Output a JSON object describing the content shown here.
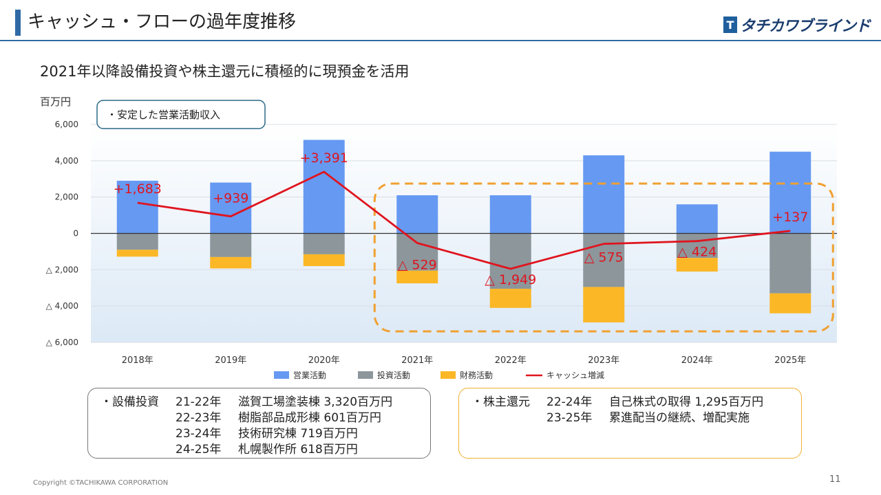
{
  "header": {
    "title": "キャッシュ・フローの過年度推移",
    "logo_text": "タチカワブラインド",
    "logo_mark": "T"
  },
  "subtitle": "2021年以降設備投資や株主還元に積極的に現預金を活用",
  "chart_data": {
    "type": "bar",
    "stacked": true,
    "unit": "百万円",
    "categories": [
      "2018年",
      "2019年",
      "2020年",
      "2021年",
      "2022年",
      "2023年",
      "2024年",
      "2025年"
    ],
    "series": [
      {
        "name": "営業活動",
        "color": "#6699f2",
        "values": [
          2900,
          2800,
          5150,
          2100,
          2100,
          4300,
          1600,
          4500
        ]
      },
      {
        "name": "投資活動",
        "color": "#8c969b",
        "values": [
          -900,
          -1300,
          -1150,
          -2050,
          -3050,
          -2950,
          -1350,
          -3300
        ]
      },
      {
        "name": "財務活動",
        "color": "#fbb726",
        "values": [
          -380,
          -630,
          -650,
          -700,
          -1050,
          -1950,
          -750,
          -1100
        ]
      }
    ],
    "line_series": {
      "name": "キャッシュ増減",
      "color": "#e0141e",
      "values": [
        1683,
        939,
        3391,
        -529,
        -1949,
        -575,
        -424,
        137
      ]
    },
    "data_labels": [
      "+1,683",
      "+939",
      "+3,391",
      "△ 529",
      "△ 1,949",
      "△ 575",
      "△ 424",
      "+137"
    ],
    "ylim": [
      -6000,
      6000
    ],
    "yticks": [
      6000,
      4000,
      2000,
      0,
      -2000,
      -4000,
      -6000
    ],
    "ytick_labels": [
      "6,000",
      "4,000",
      "2,000",
      "0",
      "△ 2,000",
      "△ 4,000",
      "△ 6,000"
    ],
    "legend_position": "bottom",
    "annotation": "・安定した営業活動収入",
    "highlight_range": [
      "2021年",
      "2025年"
    ],
    "colors": {
      "highlight": "#f0a030",
      "annotation_border": "#2a6a86",
      "grid": "#d8dde3",
      "axis": "#333333"
    }
  },
  "capex_box": {
    "label": "・設備投資",
    "rows": [
      {
        "period": "21-22年",
        "text": "滋賀工場塗装棟 3,320百万円"
      },
      {
        "period": "22-23年",
        "text": "樹脂部品成形棟 601百万円"
      },
      {
        "period": "23-24年",
        "text": "技術研究棟 719百万円"
      },
      {
        "period": "24-25年",
        "text": "札幌製作所 618百万円"
      }
    ]
  },
  "return_box": {
    "label": "・株主還元",
    "rows": [
      {
        "period": "22-24年",
        "text": "自己株式の取得 1,295百万円"
      },
      {
        "period": "23-25年",
        "text": "累進配当の継続、増配実施"
      }
    ],
    "border_color": "#f0b030"
  },
  "footer": {
    "copyright": "Copyright ©TACHIKAWA CORPORATION",
    "page_number": "11"
  }
}
